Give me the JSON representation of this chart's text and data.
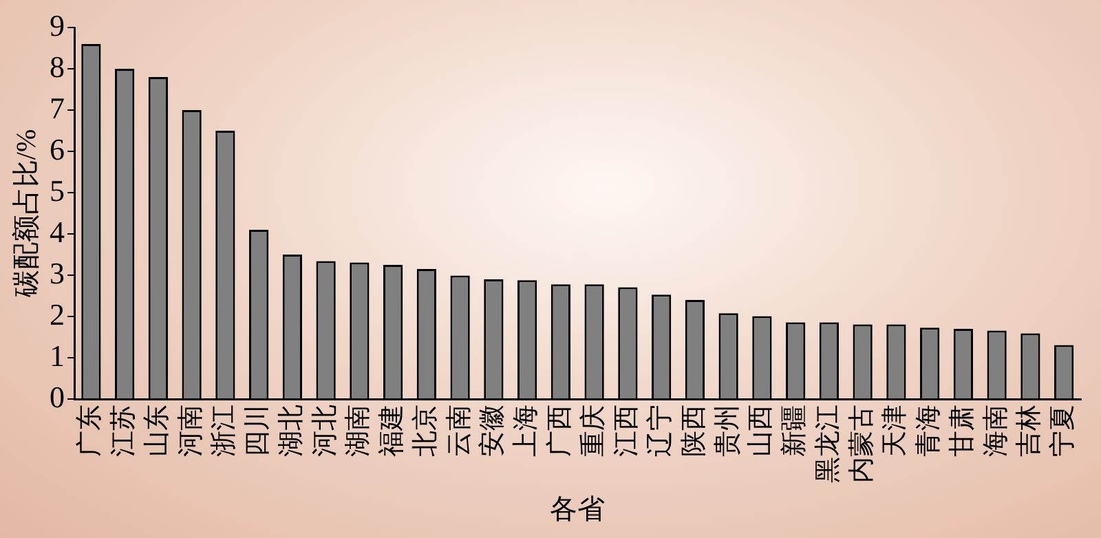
{
  "chart_data": {
    "type": "bar",
    "xlabel": "各省",
    "ylabel": "碳配额占比/%",
    "categories": [
      "广东",
      "江苏",
      "山东",
      "河南",
      "浙江",
      "四川",
      "湖北",
      "河北",
      "湖南",
      "福建",
      "北京",
      "云南",
      "安徽",
      "上海",
      "广西",
      "重庆",
      "江西",
      "辽宁",
      "陕西",
      "贵州",
      "山西",
      "新疆",
      "黑龙江",
      "内蒙古",
      "天津",
      "青海",
      "甘肃",
      "海南",
      "吉林",
      "宁夏"
    ],
    "values": [
      8.6,
      8.0,
      7.8,
      7.0,
      6.5,
      4.1,
      3.5,
      3.34,
      3.31,
      3.25,
      3.15,
      2.99,
      2.9,
      2.88,
      2.78,
      2.78,
      2.71,
      2.53,
      2.4,
      2.08,
      2.01,
      1.86,
      1.86,
      1.81,
      1.81,
      1.73,
      1.7,
      1.66,
      1.59,
      1.31
    ],
    "color": "#808080",
    "ylim": [
      0,
      9
    ],
    "yticks": [
      0,
      1,
      2,
      3,
      4,
      5,
      6,
      7,
      8,
      9
    ]
  }
}
